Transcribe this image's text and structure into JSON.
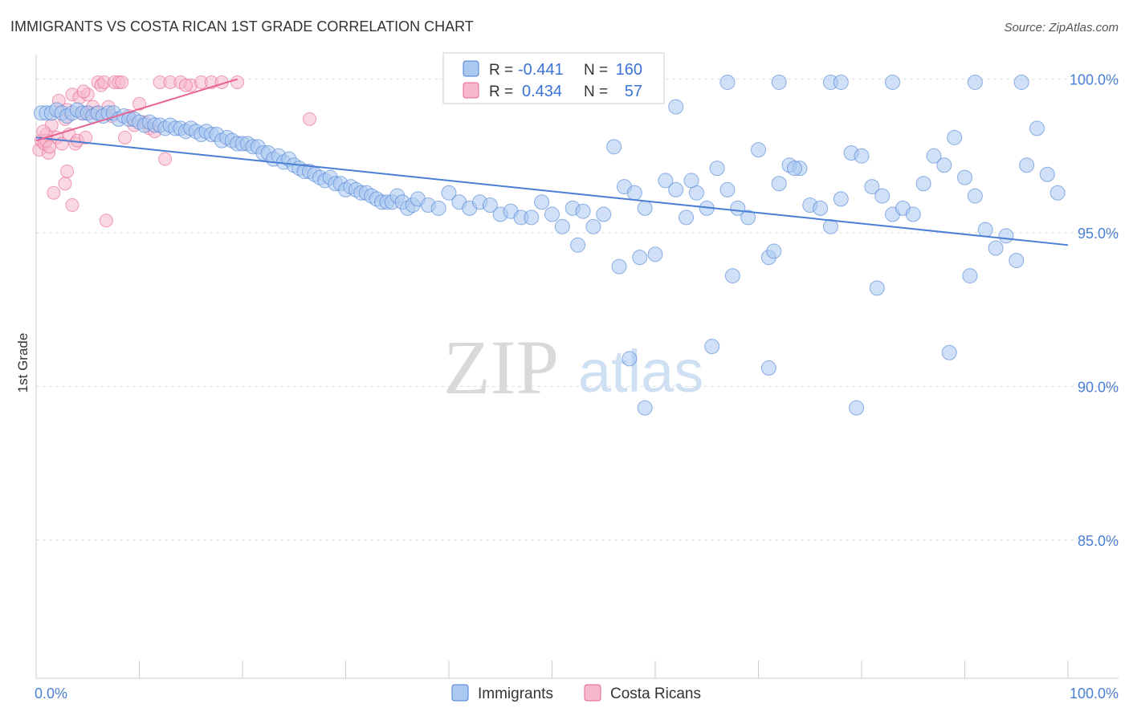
{
  "title": "IMMIGRANTS VS COSTA RICAN 1ST GRADE CORRELATION CHART",
  "source": "Source: ZipAtlas.com",
  "watermark": {
    "zip": "ZIP",
    "atlas": "atlas"
  },
  "colors": {
    "blue": "#4a7fd4",
    "blue_fill": "#aac8f0",
    "pink": "#e8638f",
    "pink_fill": "#f5b8cc"
  },
  "legend": {
    "r_label": "R =",
    "n_label": "N =",
    "rows": [
      {
        "r": "-0.441",
        "n": "160"
      },
      {
        "r": "0.434",
        "n": "57"
      }
    ]
  },
  "chart_data": {
    "type": "scatter",
    "xlabel": "",
    "ylabel": "1st Grade",
    "xlim": [
      0,
      100
    ],
    "ylim": [
      80.5,
      100.8
    ],
    "x_tick_labels": [
      "0.0%",
      "100.0%"
    ],
    "y_ticks": [
      {
        "value": 100,
        "label": "100.0%"
      },
      {
        "value": 95,
        "label": "95.0%"
      },
      {
        "value": 90,
        "label": "90.0%"
      },
      {
        "value": 85,
        "label": "85.0%"
      }
    ],
    "series": [
      {
        "name": "Immigrants",
        "trend": {
          "x": [
            0,
            100
          ],
          "y": [
            98.1,
            94.6
          ]
        },
        "points": [
          [
            0.5,
            98.9
          ],
          [
            1,
            98.9
          ],
          [
            1.5,
            98.9
          ],
          [
            2,
            99.0
          ],
          [
            2.5,
            98.9
          ],
          [
            3,
            98.8
          ],
          [
            3.5,
            98.9
          ],
          [
            4,
            99.0
          ],
          [
            4.5,
            98.9
          ],
          [
            5,
            98.9
          ],
          [
            5.5,
            98.8
          ],
          [
            6,
            98.9
          ],
          [
            6.5,
            98.8
          ],
          [
            7,
            98.9
          ],
          [
            7.5,
            98.9
          ],
          [
            8,
            98.7
          ],
          [
            8.5,
            98.8
          ],
          [
            9,
            98.7
          ],
          [
            9.5,
            98.7
          ],
          [
            10,
            98.6
          ],
          [
            10.5,
            98.5
          ],
          [
            11,
            98.6
          ],
          [
            11.5,
            98.5
          ],
          [
            12,
            98.5
          ],
          [
            12.5,
            98.4
          ],
          [
            13,
            98.5
          ],
          [
            13.5,
            98.4
          ],
          [
            14,
            98.4
          ],
          [
            14.5,
            98.3
          ],
          [
            15,
            98.4
          ],
          [
            15.5,
            98.3
          ],
          [
            16,
            98.2
          ],
          [
            16.5,
            98.3
          ],
          [
            17,
            98.2
          ],
          [
            17.5,
            98.2
          ],
          [
            18,
            98.0
          ],
          [
            18.5,
            98.1
          ],
          [
            19,
            98.0
          ],
          [
            19.5,
            97.9
          ],
          [
            20,
            97.9
          ],
          [
            20.5,
            97.9
          ],
          [
            21,
            97.8
          ],
          [
            21.5,
            97.8
          ],
          [
            22,
            97.6
          ],
          [
            22.5,
            97.6
          ],
          [
            23,
            97.4
          ],
          [
            23.5,
            97.5
          ],
          [
            24,
            97.3
          ],
          [
            24.5,
            97.4
          ],
          [
            25,
            97.2
          ],
          [
            25.5,
            97.1
          ],
          [
            26,
            97.0
          ],
          [
            26.5,
            97.0
          ],
          [
            27,
            96.9
          ],
          [
            27.5,
            96.8
          ],
          [
            28,
            96.7
          ],
          [
            28.5,
            96.8
          ],
          [
            29,
            96.6
          ],
          [
            29.5,
            96.6
          ],
          [
            30,
            96.4
          ],
          [
            30.5,
            96.5
          ],
          [
            31,
            96.4
          ],
          [
            31.5,
            96.3
          ],
          [
            32,
            96.3
          ],
          [
            32.5,
            96.2
          ],
          [
            33,
            96.1
          ],
          [
            33.5,
            96.0
          ],
          [
            34,
            96.0
          ],
          [
            34.5,
            96.0
          ],
          [
            35,
            96.2
          ],
          [
            35.5,
            96.0
          ],
          [
            36,
            95.8
          ],
          [
            36.5,
            95.9
          ],
          [
            37,
            96.1
          ],
          [
            38,
            95.9
          ],
          [
            39,
            95.8
          ],
          [
            40,
            96.3
          ],
          [
            41,
            96.0
          ],
          [
            42,
            95.8
          ],
          [
            43,
            96.0
          ],
          [
            44,
            95.9
          ],
          [
            45,
            95.6
          ],
          [
            46,
            95.7
          ],
          [
            47,
            95.5
          ],
          [
            48,
            95.5
          ],
          [
            49,
            96.0
          ],
          [
            50,
            95.6
          ],
          [
            51,
            95.2
          ],
          [
            52,
            95.8
          ],
          [
            53,
            95.7
          ],
          [
            54,
            95.2
          ],
          [
            55,
            95.6
          ],
          [
            56,
            97.8
          ],
          [
            57,
            96.5
          ],
          [
            58,
            96.3
          ],
          [
            59,
            95.8
          ],
          [
            60,
            94.3
          ],
          [
            61,
            96.7
          ],
          [
            62,
            96.4
          ],
          [
            63,
            95.5
          ],
          [
            64,
            96.3
          ],
          [
            65,
            95.8
          ],
          [
            66,
            97.1
          ],
          [
            67,
            96.4
          ],
          [
            68,
            95.8
          ],
          [
            69,
            95.5
          ],
          [
            70,
            97.7
          ],
          [
            71,
            94.2
          ],
          [
            72,
            96.6
          ],
          [
            73,
            97.2
          ],
          [
            74,
            97.1
          ],
          [
            75,
            95.9
          ],
          [
            76,
            95.8
          ],
          [
            77,
            95.2
          ],
          [
            78,
            96.1
          ],
          [
            79,
            97.6
          ],
          [
            80,
            97.5
          ],
          [
            81,
            96.5
          ],
          [
            82,
            96.2
          ],
          [
            83,
            95.6
          ],
          [
            84,
            95.8
          ],
          [
            85,
            95.6
          ],
          [
            86,
            96.6
          ],
          [
            87,
            97.5
          ],
          [
            88,
            97.2
          ],
          [
            89,
            98.1
          ],
          [
            90,
            96.8
          ],
          [
            91,
            96.2
          ],
          [
            92,
            95.1
          ],
          [
            93,
            94.5
          ],
          [
            94,
            94.9
          ],
          [
            95,
            94.1
          ],
          [
            96,
            97.2
          ],
          [
            97,
            98.4
          ],
          [
            98,
            96.9
          ],
          [
            99,
            96.3
          ],
          [
            52.5,
            94.6
          ],
          [
            56.5,
            93.9
          ],
          [
            58.5,
            94.2
          ],
          [
            63.5,
            96.7
          ],
          [
            71.5,
            94.4
          ],
          [
            73.5,
            97.1
          ],
          [
            67.5,
            93.6
          ],
          [
            81.5,
            93.2
          ],
          [
            90.5,
            93.6
          ],
          [
            57.5,
            90.9
          ],
          [
            65.5,
            91.3
          ],
          [
            71,
            90.6
          ],
          [
            59,
            89.3
          ],
          [
            79.5,
            89.3
          ],
          [
            88.5,
            91.1
          ],
          [
            67,
            99.9
          ],
          [
            72,
            99.9
          ],
          [
            77,
            99.9
          ],
          [
            78,
            99.9
          ],
          [
            83,
            99.9
          ],
          [
            91,
            99.9
          ],
          [
            95.5,
            99.9
          ],
          [
            62,
            99.1
          ]
        ]
      },
      {
        "name": "Costa Ricans",
        "trend": {
          "x": [
            0,
            19.5
          ],
          "y": [
            98.0,
            100.0
          ]
        },
        "points": [
          [
            0.3,
            97.7
          ],
          [
            0.5,
            98.0
          ],
          [
            0.8,
            97.9
          ],
          [
            1,
            98.2
          ],
          [
            1.2,
            97.6
          ],
          [
            1.5,
            98.5
          ],
          [
            1.7,
            96.3
          ],
          [
            2,
            98.1
          ],
          [
            2.2,
            99.3
          ],
          [
            2.5,
            97.9
          ],
          [
            2.8,
            98.7
          ],
          [
            3,
            99.0
          ],
          [
            3.2,
            98.2
          ],
          [
            3.5,
            99.5
          ],
          [
            3.8,
            97.9
          ],
          [
            4,
            98.0
          ],
          [
            4.2,
            99.4
          ],
          [
            4.5,
            98.9
          ],
          [
            4.8,
            98.1
          ],
          [
            5,
            99.5
          ],
          [
            5.2,
            98.9
          ],
          [
            5.5,
            99.1
          ],
          [
            5.8,
            98.9
          ],
          [
            6,
            99.9
          ],
          [
            6.3,
            99.8
          ],
          [
            6.6,
            99.9
          ],
          [
            7,
            99.1
          ],
          [
            7.3,
            98.8
          ],
          [
            7.6,
            99.9
          ],
          [
            8,
            99.9
          ],
          [
            8.3,
            99.9
          ],
          [
            8.6,
            98.1
          ],
          [
            9,
            98.8
          ],
          [
            9.5,
            98.5
          ],
          [
            10,
            99.2
          ],
          [
            10.5,
            98.6
          ],
          [
            11,
            98.4
          ],
          [
            11.5,
            98.3
          ],
          [
            12,
            99.9
          ],
          [
            13,
            99.9
          ],
          [
            14,
            99.9
          ],
          [
            15,
            99.8
          ],
          [
            16,
            99.9
          ],
          [
            17,
            99.9
          ],
          [
            18,
            99.9
          ],
          [
            19.5,
            99.9
          ],
          [
            2.8,
            96.6
          ],
          [
            3,
            97.0
          ],
          [
            3.5,
            95.9
          ],
          [
            6.8,
            95.4
          ],
          [
            26.5,
            98.7
          ],
          [
            1,
            98.0
          ],
          [
            1.3,
            97.8
          ],
          [
            0.7,
            98.3
          ],
          [
            4.6,
            99.6
          ],
          [
            12.5,
            97.4
          ],
          [
            14.5,
            99.8
          ]
        ]
      }
    ]
  },
  "bottom_legend": [
    "Immigrants",
    "Costa Ricans"
  ]
}
